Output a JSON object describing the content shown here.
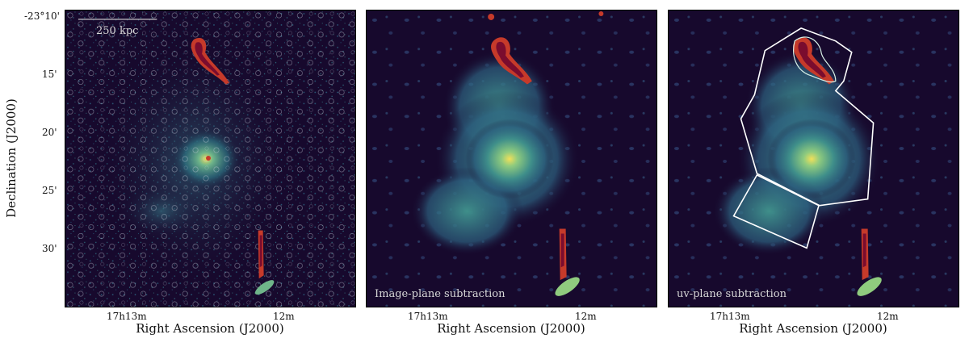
{
  "figure": {
    "y_axis_label": "Declination (J2000)",
    "x_axis_label": "Right Ascension (J2000)",
    "y_ticks": [
      "-23°10'",
      "15'",
      "20'",
      "25'",
      "30'"
    ],
    "x_ticks": [
      "17h13m",
      "12m"
    ]
  },
  "panels": [
    {
      "caption": "",
      "scale_bar": "250 kpc"
    },
    {
      "caption": "Image-plane subtraction"
    },
    {
      "caption": "uv-plane subtraction"
    }
  ],
  "colors": {
    "background": "#17092d",
    "diffuse_emission": "#3f8f8a",
    "bright_core": "#f1e05a",
    "source_peak": "#7a0c2e",
    "source_mid": "#c63a2a",
    "region_outline": "#ffffff"
  }
}
